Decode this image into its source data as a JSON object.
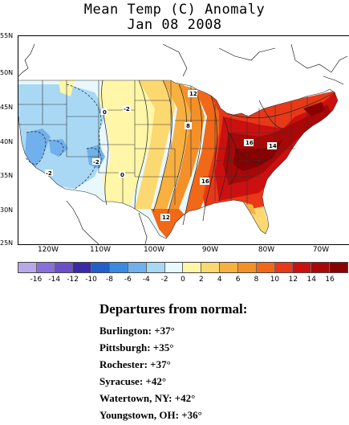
{
  "title": {
    "line1": "Mean Temp (C) Anomaly",
    "line2": "Jan 08 2008"
  },
  "map": {
    "lat_labels": [
      "55N",
      "50N",
      "45N",
      "40N",
      "35N",
      "30N",
      "25N"
    ],
    "lon_labels": [
      "120W",
      "110W",
      "100W",
      "90W",
      "80W",
      "70W"
    ],
    "contour_labels": [
      "12",
      "8",
      "16",
      "14",
      "16",
      "12",
      "0",
      "-2",
      "-2",
      "-2",
      "0"
    ]
  },
  "colorbar": {
    "labels": [
      "-16",
      "-14",
      "-12",
      "-10",
      "-8",
      "-6",
      "-4",
      "-2",
      "0",
      "2",
      "4",
      "6",
      "8",
      "10",
      "12",
      "14",
      "16"
    ],
    "colors": [
      "#b8a8e8",
      "#8870d8",
      "#6a50c8",
      "#3a2aa8",
      "#2060c8",
      "#3a8ae0",
      "#70b0ec",
      "#a8d8f4",
      "#e8f8fc",
      "#fff6a8",
      "#fcd870",
      "#f8b040",
      "#f49028",
      "#f06818",
      "#e83818",
      "#cc1010",
      "#a80808",
      "#880000"
    ]
  },
  "departures": {
    "heading": "Departures from normal:",
    "rows": [
      "Burlington: +37°",
      "Pittsburgh: +35°",
      "Rochester: +37°",
      "Syracuse: +42°",
      "Watertown, NY: +42°",
      "Youngstown, OH: +36°"
    ]
  }
}
